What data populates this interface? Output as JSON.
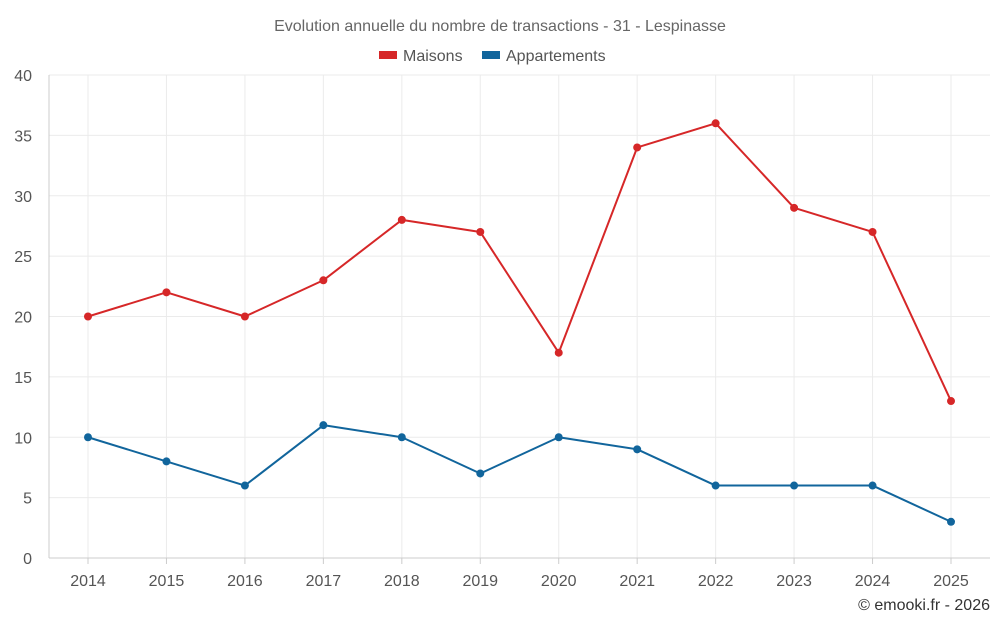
{
  "chart_data": {
    "type": "line",
    "title": "Evolution annuelle du nombre de transactions - 31 - Lespinasse",
    "categories": [
      "2014",
      "2015",
      "2016",
      "2017",
      "2018",
      "2019",
      "2020",
      "2021",
      "2022",
      "2023",
      "2024",
      "2025"
    ],
    "series": [
      {
        "name": "Maisons",
        "color": "#d62728",
        "values": [
          20,
          22,
          20,
          23,
          28,
          27,
          17,
          34,
          36,
          29,
          27,
          13
        ]
      },
      {
        "name": "Appartements",
        "color": "#11659c",
        "values": [
          10,
          8,
          6,
          11,
          10,
          7,
          10,
          9,
          6,
          6,
          6,
          3
        ]
      }
    ],
    "ylim": [
      0,
      40
    ],
    "yticks": [
      0,
      5,
      10,
      15,
      20,
      25,
      30,
      35,
      40
    ],
    "grid": true,
    "legend": "top-center",
    "xlabel": "",
    "ylabel": ""
  },
  "credit": "© emooki.fr - 2026"
}
